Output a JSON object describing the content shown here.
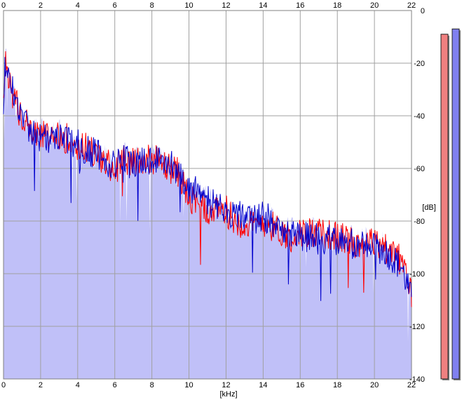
{
  "chart_data": {
    "type": "area",
    "xlabel": "[kHz]",
    "ylabel": "[dB]",
    "xlim": [
      0,
      22
    ],
    "ylim": [
      -140,
      0
    ],
    "x_ticks": [
      "0",
      "2",
      "4",
      "6",
      "8",
      "10",
      "12",
      "14",
      "16",
      "18",
      "20",
      "22"
    ],
    "y_ticks": [
      "0",
      "-20",
      "-40",
      "-60",
      "-80",
      "-100",
      "-120",
      "-140"
    ],
    "grid": true,
    "series": [
      {
        "color": "#ff0000",
        "x": [
          0.0,
          0.1,
          0.2,
          0.3,
          0.5,
          0.7,
          1.0,
          1.3,
          1.6,
          2.0,
          2.4,
          2.8,
          3.2,
          3.6,
          4.0,
          4.5,
          5.0,
          5.5,
          6.0,
          6.5,
          7.0,
          7.5,
          8.0,
          8.5,
          9.0,
          9.5,
          10.0,
          10.5,
          11.0,
          11.5,
          12.0,
          12.5,
          13.0,
          13.5,
          14.0,
          14.5,
          15.0,
          15.5,
          16.0,
          16.5,
          17.0,
          17.5,
          18.0,
          18.5,
          19.0,
          19.5,
          20.0,
          20.5,
          21.0,
          21.5,
          22.0
        ],
        "y": [
          -38,
          -20,
          -23,
          -28,
          -32,
          -36,
          -40,
          -43,
          -45,
          -46,
          -48,
          -47,
          -48,
          -49,
          -52,
          -52,
          -55,
          -58,
          -60,
          -57,
          -58,
          -56,
          -56,
          -58,
          -60,
          -62,
          -72,
          -74,
          -76,
          -77,
          -76,
          -80,
          -81,
          -82,
          -80,
          -82,
          -84,
          -86,
          -85,
          -84,
          -85,
          -85,
          -86,
          -87,
          -88,
          -88,
          -88,
          -90,
          -92,
          -96,
          -108
        ]
      },
      {
        "color": "#0000cc",
        "x": [
          0.0,
          0.1,
          0.2,
          0.3,
          0.5,
          0.7,
          1.0,
          1.3,
          1.6,
          2.0,
          2.4,
          2.8,
          3.2,
          3.6,
          4.0,
          4.5,
          5.0,
          5.5,
          6.0,
          6.5,
          7.0,
          7.5,
          8.0,
          8.5,
          9.0,
          9.5,
          10.0,
          10.5,
          11.0,
          11.5,
          12.0,
          12.5,
          13.0,
          13.5,
          14.0,
          14.5,
          15.0,
          15.5,
          16.0,
          16.5,
          17.0,
          17.5,
          18.0,
          18.5,
          19.0,
          19.5,
          20.0,
          20.5,
          21.0,
          21.5,
          22.0
        ],
        "y": [
          -35,
          -19,
          -22,
          -27,
          -31,
          -37,
          -41,
          -44,
          -46,
          -48,
          -49,
          -48,
          -47,
          -50,
          -51,
          -53,
          -54,
          -57,
          -59,
          -56,
          -59,
          -57,
          -58,
          -57,
          -59,
          -61,
          -68,
          -69,
          -72,
          -74,
          -76,
          -77,
          -79,
          -80,
          -78,
          -80,
          -83,
          -84,
          -86,
          -86,
          -87,
          -87,
          -88,
          -88,
          -89,
          -90,
          -90,
          -91,
          -94,
          -98,
          -110
        ]
      }
    ],
    "fill_color": "#c0c0f8",
    "meters": [
      {
        "channel": "left",
        "level_db": -9,
        "color": "#f08080"
      },
      {
        "channel": "right",
        "level_db": -7,
        "color": "#8080f0"
      }
    ]
  }
}
